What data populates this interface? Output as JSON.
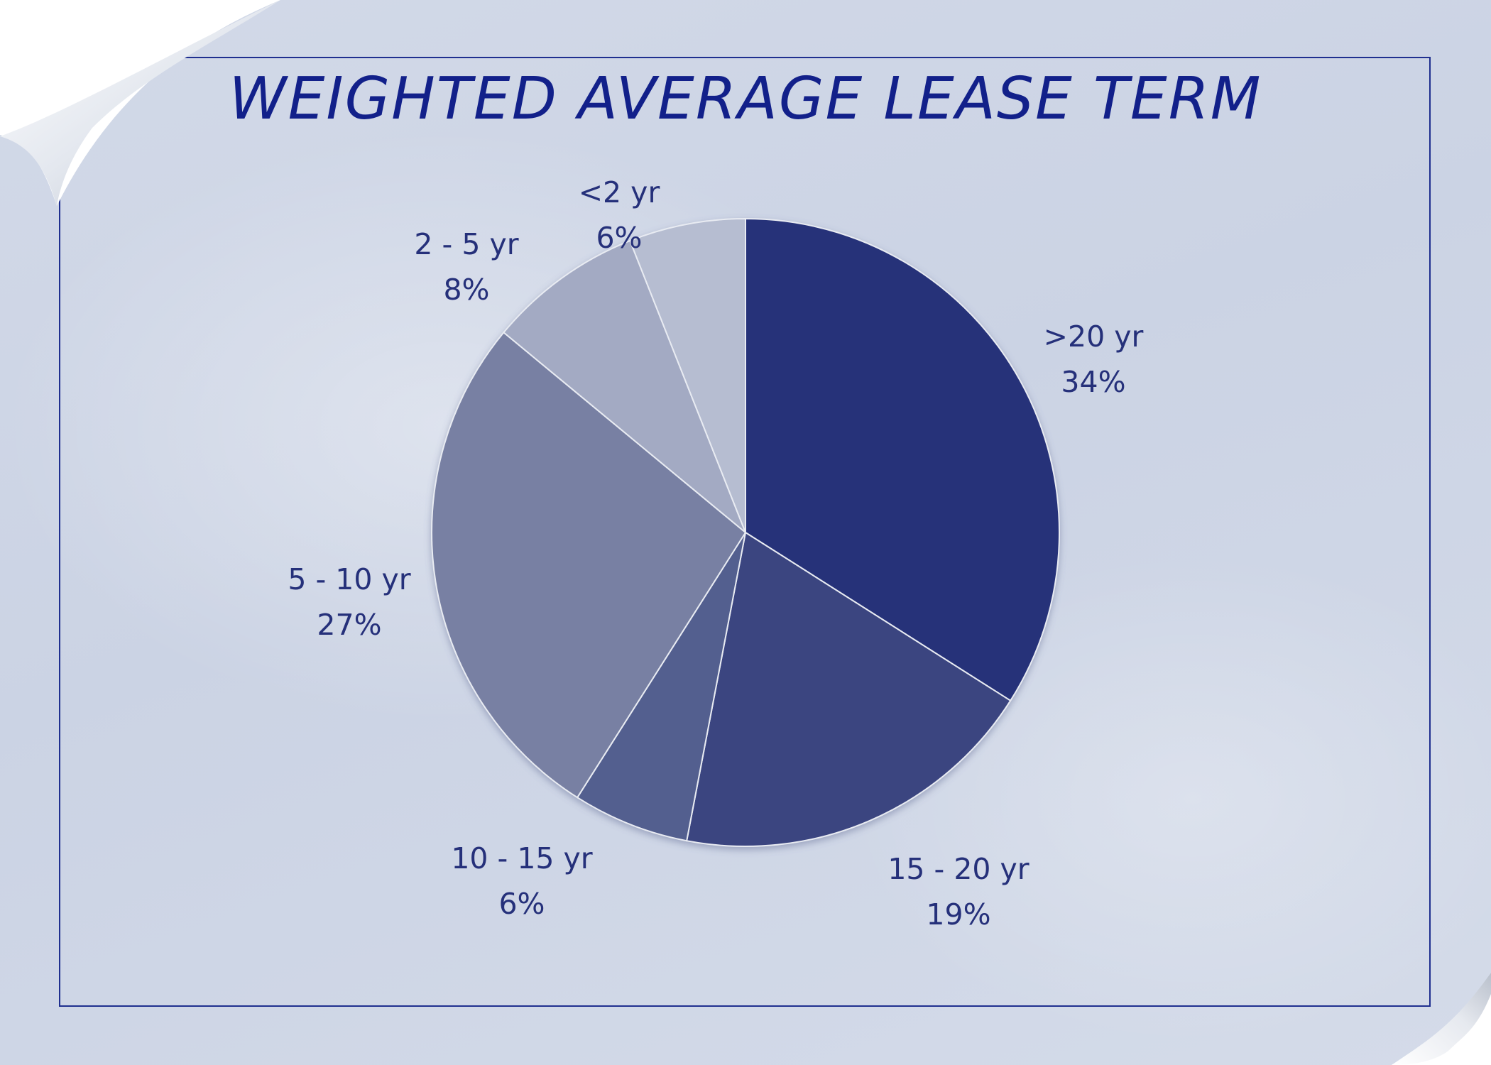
{
  "chart_data": {
    "type": "pie",
    "title": "WEIGHTED AVERAGE LEASE TERM",
    "categories": [
      ">20 yr",
      "15 - 20 yr",
      "10 - 15 yr",
      "5 - 10 yr",
      "2 - 5 yr",
      "<2 yr"
    ],
    "values": [
      34,
      19,
      6,
      27,
      8,
      6
    ],
    "value_labels": [
      "34%",
      "19%",
      "6%",
      "27%",
      "8%",
      "6%"
    ],
    "colors": [
      "#263279",
      "#3b4580",
      "#535e8f",
      "#7880a3",
      "#a3aac3",
      "#b6bdd1"
    ],
    "start_angle_deg": 0,
    "direction": "clockwise",
    "legend": "none"
  },
  "colors": {
    "background": "#d2d9e8",
    "frame": "#1f2f8f",
    "title": "#12208a",
    "label": "#25307a"
  },
  "decorations": [
    "page-curl-top-left",
    "page-curl-bottom-right"
  ]
}
